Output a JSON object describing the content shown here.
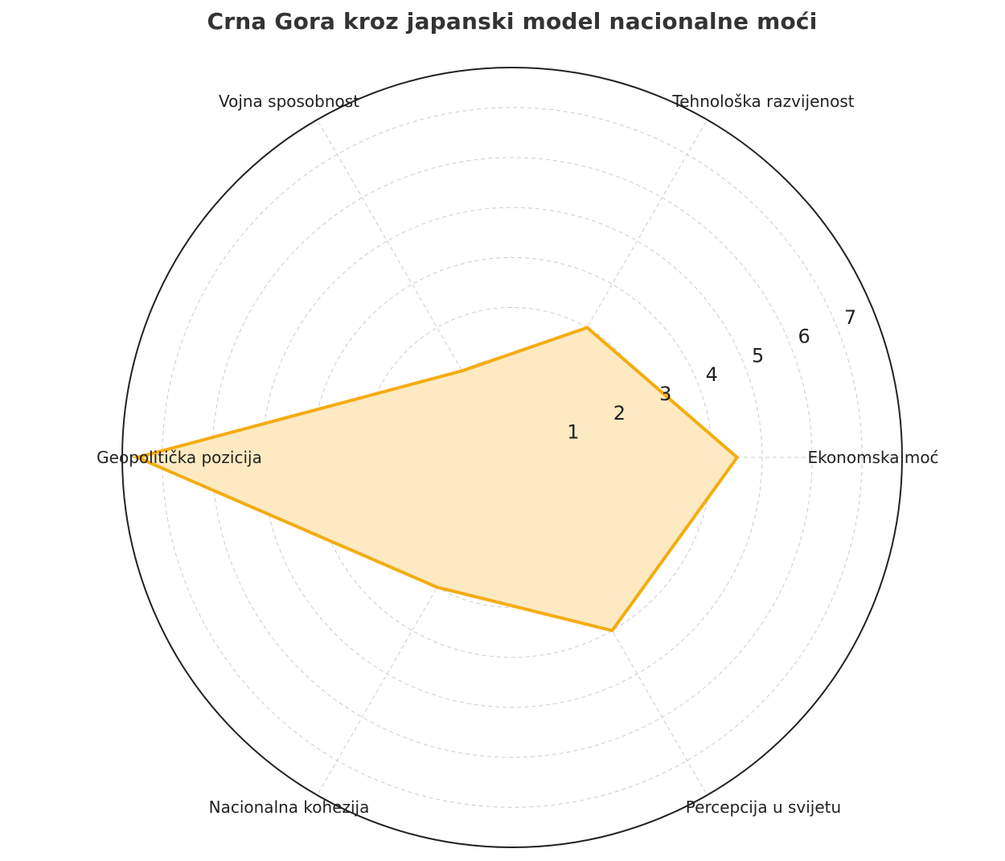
{
  "chart_data": {
    "type": "radar",
    "title": "Crna Gora kroz japanski model nacionalne moći",
    "categories": [
      "Ekonomska moć",
      "Tehnološka razvijenost",
      "Vojna sposobnost",
      "Geopolitička pozicija",
      "Nacionalna kohezija",
      "Percepcija u svijetu"
    ],
    "series": [
      {
        "values": [
          4.5,
          3,
          2,
          7.5,
          3,
          4
        ]
      }
    ],
    "radial_ticks": [
      1,
      2,
      3,
      4,
      5,
      6,
      7
    ],
    "rlim": [
      0,
      7.8
    ],
    "grid": true,
    "colors": {
      "line": "#F5AC0F",
      "fill": "#FDE9C0",
      "grid": "#CCCCCC",
      "frame": "#222222"
    }
  }
}
